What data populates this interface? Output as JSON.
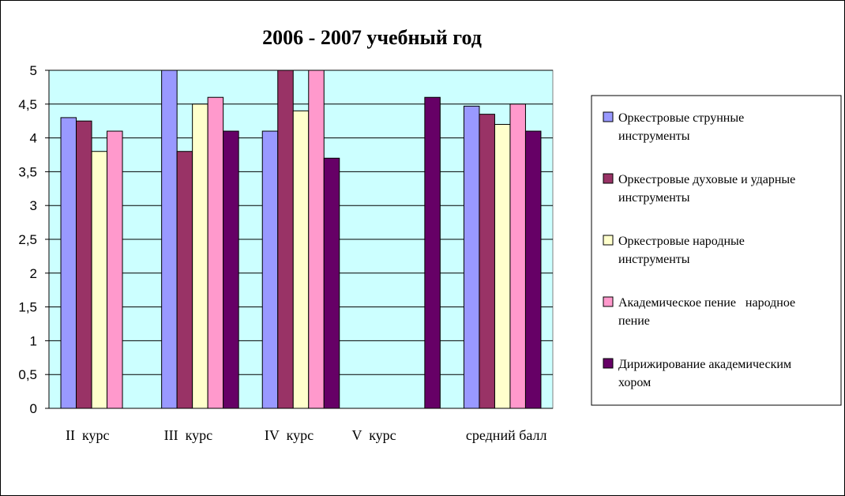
{
  "chart_data": {
    "type": "bar",
    "title": "2006 - 2007 учебный год",
    "categories": [
      "II  курс",
      "III  курс",
      "IV  курс",
      "V  курс",
      "средний балл"
    ],
    "yticks": [
      "0",
      "0,5",
      "1",
      "1,5",
      "2",
      "2,5",
      "3",
      "3,5",
      "4",
      "4,5",
      "5"
    ],
    "ylim": [
      0,
      5
    ],
    "grid": true,
    "legend_position": "right",
    "plot_background": "#ccffff",
    "series": [
      {
        "name": "Оркестровые струнные инструменты",
        "legend_lines": [
          "Оркестровые струнные",
          "инструменты"
        ],
        "color": "#9999ff",
        "values": [
          4.3,
          5.0,
          4.1,
          null,
          4.47
        ]
      },
      {
        "name": "Оркестровые духовые и ударные инструменты",
        "legend_lines": [
          "Оркестровые духовые и ударные",
          "инструменты"
        ],
        "color": "#993366",
        "values": [
          4.25,
          3.8,
          5.0,
          null,
          4.35
        ]
      },
      {
        "name": "Оркестровые народные инструменты",
        "legend_lines": [
          "Оркестровые народные",
          "инструменты"
        ],
        "color": "#ffffcc",
        "values": [
          3.8,
          4.5,
          4.4,
          null,
          4.2
        ]
      },
      {
        "name": "Академическое пение   народное пение",
        "legend_lines": [
          "Академическое пение   народное",
          "пение"
        ],
        "color": "#ff99cc",
        "values": [
          4.1,
          4.6,
          5.0,
          null,
          4.5
        ]
      },
      {
        "name": "Дирижирование академическим хором",
        "legend_lines": [
          "Дирижирование академическим",
          "хором"
        ],
        "color": "#660066",
        "values": [
          null,
          4.1,
          3.7,
          4.6,
          4.1
        ]
      }
    ]
  }
}
